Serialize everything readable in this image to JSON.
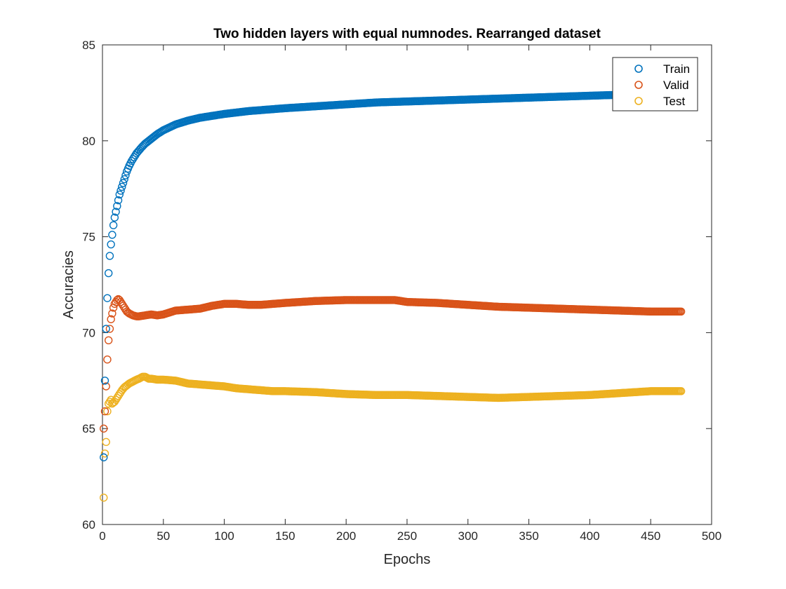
{
  "chart_data": {
    "type": "scatter",
    "title": "Two hidden layers with equal numnodes. Rearranged dataset",
    "xlabel": "Epochs",
    "ylabel": "Accuracies",
    "xlim": [
      0,
      500
    ],
    "ylim": [
      60,
      85
    ],
    "x_ticks": [
      0,
      50,
      100,
      150,
      200,
      250,
      300,
      350,
      400,
      450,
      500
    ],
    "y_ticks": [
      60,
      65,
      70,
      75,
      80,
      85
    ],
    "grid": false,
    "legend_position": "top-right",
    "marker": "open-circle",
    "series": [
      {
        "name": "Train",
        "color": "#0072BD",
        "x": [
          1,
          2,
          3,
          4,
          5,
          6,
          7,
          8,
          9,
          10,
          11,
          12,
          13,
          14,
          15,
          16,
          17,
          18,
          19,
          20,
          22,
          24,
          26,
          28,
          30,
          32,
          35,
          38,
          40,
          45,
          50,
          55,
          60,
          70,
          80,
          90,
          100,
          120,
          140,
          150,
          175,
          200,
          225,
          250,
          275,
          300,
          325,
          350,
          375,
          400,
          425,
          450,
          475
        ],
        "y": [
          63.5,
          67.5,
          70.2,
          71.8,
          73.1,
          74.0,
          74.6,
          75.1,
          75.6,
          76.0,
          76.3,
          76.6,
          76.9,
          77.2,
          77.4,
          77.6,
          77.8,
          78.0,
          78.2,
          78.4,
          78.7,
          78.95,
          79.15,
          79.35,
          79.5,
          79.65,
          79.85,
          80.0,
          80.1,
          80.35,
          80.55,
          80.7,
          80.85,
          81.05,
          81.2,
          81.3,
          81.4,
          81.55,
          81.65,
          81.7,
          81.8,
          81.9,
          82.0,
          82.05,
          82.1,
          82.15,
          82.2,
          82.25,
          82.3,
          82.35,
          82.4,
          82.45,
          82.5
        ]
      },
      {
        "name": "Valid",
        "color": "#D95319",
        "x": [
          1,
          2,
          3,
          4,
          5,
          6,
          7,
          8,
          9,
          10,
          11,
          12,
          13,
          14,
          15,
          16,
          18,
          20,
          22,
          25,
          28,
          30,
          35,
          40,
          45,
          50,
          55,
          60,
          70,
          80,
          90,
          100,
          110,
          120,
          130,
          140,
          150,
          175,
          200,
          225,
          240,
          250,
          275,
          300,
          325,
          350,
          375,
          400,
          425,
          450,
          475
        ],
        "y": [
          65.0,
          65.9,
          67.2,
          68.6,
          69.6,
          70.2,
          70.7,
          71.0,
          71.3,
          71.5,
          71.6,
          71.7,
          71.75,
          71.7,
          71.6,
          71.5,
          71.3,
          71.1,
          71.0,
          70.9,
          70.85,
          70.85,
          70.9,
          70.95,
          70.9,
          70.95,
          71.05,
          71.15,
          71.2,
          71.25,
          71.4,
          71.5,
          71.5,
          71.45,
          71.45,
          71.5,
          71.55,
          71.65,
          71.7,
          71.7,
          71.7,
          71.6,
          71.55,
          71.45,
          71.35,
          71.3,
          71.25,
          71.2,
          71.15,
          71.1,
          71.1
        ]
      },
      {
        "name": "Test",
        "color": "#EDB120",
        "x": [
          1,
          2,
          3,
          4,
          5,
          6,
          7,
          8,
          10,
          12,
          14,
          16,
          18,
          20,
          22,
          25,
          28,
          30,
          33,
          35,
          38,
          40,
          45,
          50,
          60,
          70,
          80,
          90,
          100,
          110,
          120,
          130,
          140,
          150,
          175,
          200,
          225,
          250,
          275,
          300,
          325,
          350,
          375,
          400,
          425,
          450,
          475
        ],
        "y": [
          61.4,
          63.7,
          64.3,
          65.9,
          66.3,
          66.4,
          66.5,
          66.3,
          66.4,
          66.6,
          66.8,
          67.0,
          67.15,
          67.25,
          67.35,
          67.45,
          67.55,
          67.6,
          67.7,
          67.7,
          67.6,
          67.6,
          67.55,
          67.55,
          67.5,
          67.35,
          67.3,
          67.25,
          67.2,
          67.1,
          67.05,
          67.0,
          66.95,
          66.95,
          66.9,
          66.8,
          66.75,
          66.75,
          66.7,
          66.65,
          66.6,
          66.65,
          66.7,
          66.75,
          66.85,
          66.95,
          66.95
        ]
      }
    ]
  }
}
